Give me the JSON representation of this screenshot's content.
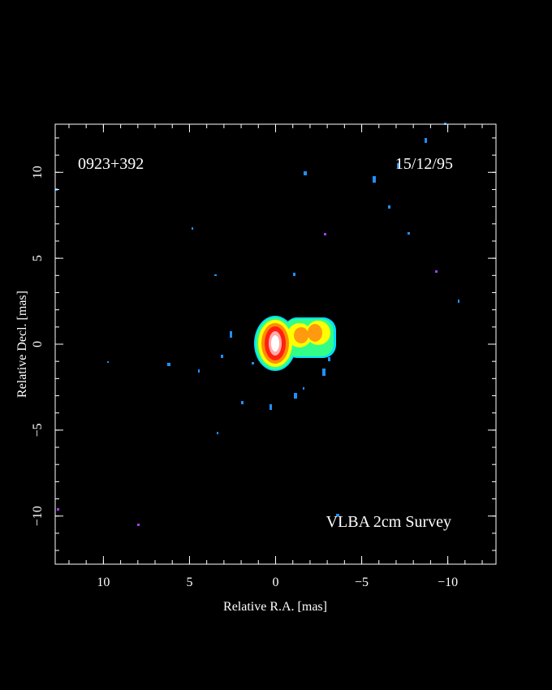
{
  "chart_data": {
    "type": "image",
    "annotations": [
      "0923+392",
      "15/12/95",
      "VLBA 2cm Survey"
    ],
    "x_label": "Relative R.A. [mas]",
    "y_label": "Relative Decl. [mas]",
    "xlim": [
      12.8,
      -12.8
    ],
    "ylim": [
      -12.8,
      12.8
    ],
    "xticks": [
      10,
      5,
      0,
      {
        "value": -5,
        "label": "−5"
      },
      {
        "value": -10,
        "label": "−10"
      }
    ],
    "yticks": [
      {
        "value": -10,
        "label": "−10"
      },
      {
        "value": -5,
        "label": "−5"
      },
      0,
      5,
      10
    ],
    "xminorticks": [
      -12,
      -11,
      -10,
      -9,
      -8,
      -7,
      -6,
      -5,
      -4,
      -3,
      -2,
      -1,
      0,
      1,
      2,
      3,
      4,
      5,
      6,
      7,
      8,
      9,
      10,
      11,
      12
    ],
    "yminorticks": [
      -12,
      -11,
      -10,
      -9,
      -8,
      -7,
      -6,
      -5,
      -4,
      -3,
      -2,
      -1,
      0,
      1,
      2,
      3,
      4,
      5,
      6,
      7,
      8,
      9,
      10,
      11,
      12
    ]
  }
}
